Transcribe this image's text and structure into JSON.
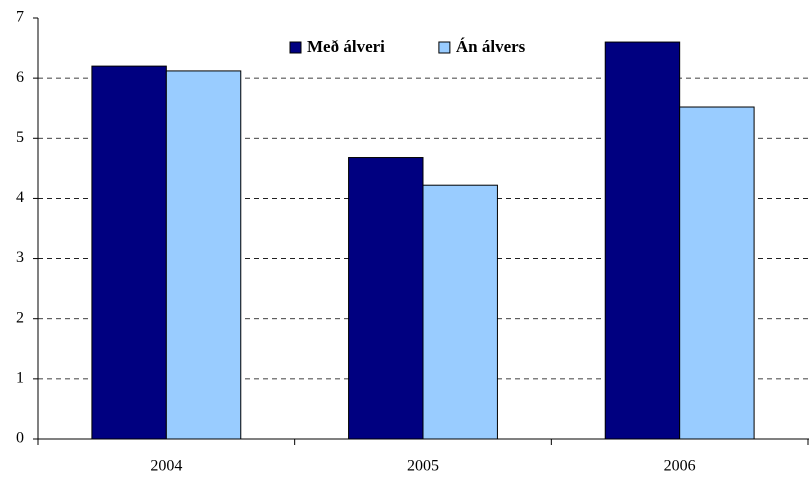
{
  "chart_data": {
    "type": "bar",
    "categories": [
      "2004",
      "2005",
      "2006"
    ],
    "series": [
      {
        "name": "Með álveri",
        "color": "#000080",
        "values": [
          6.2,
          4.68,
          6.6
        ]
      },
      {
        "name": "Án álvers",
        "color": "#99ccff",
        "values": [
          6.12,
          4.22,
          5.52
        ]
      }
    ],
    "ylim": [
      0,
      7
    ],
    "yticks": [
      0,
      1,
      2,
      3,
      4,
      5,
      6,
      7
    ],
    "grid": true,
    "legend": "top"
  }
}
